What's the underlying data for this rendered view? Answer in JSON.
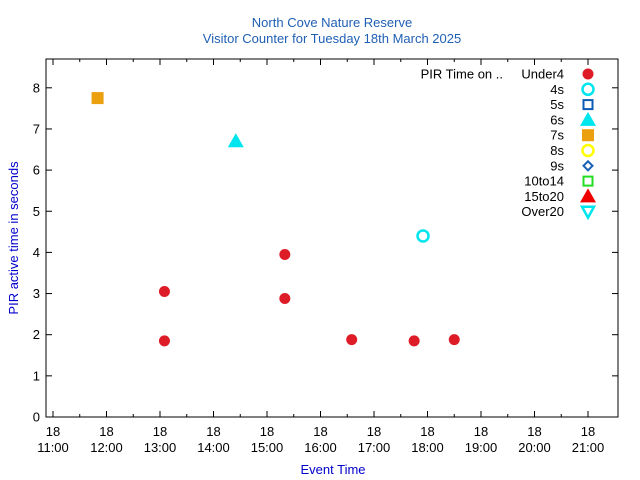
{
  "chart_data": {
    "type": "scatter",
    "title": "North Cove Nature Reserve",
    "subtitle": "Visitor Counter for Tuesday 18th March 2025",
    "xlabel": "Event Time",
    "ylabel": "PIR active time in seconds",
    "xlim": [
      "18 11:00",
      "18 21:00"
    ],
    "ylim": [
      0,
      8.7
    ],
    "xticks": [
      {
        "x": "18 11:00",
        "day": "18",
        "time": "11:00"
      },
      {
        "x": "18 12:00",
        "day": "18",
        "time": "12:00"
      },
      {
        "x": "18 13:00",
        "day": "18",
        "time": "13:00"
      },
      {
        "x": "18 14:00",
        "day": "18",
        "time": "14:00"
      },
      {
        "x": "18 15:00",
        "day": "18",
        "time": "15:00"
      },
      {
        "x": "18 16:00",
        "day": "18",
        "time": "16:00"
      },
      {
        "x": "18 17:00",
        "day": "18",
        "time": "17:00"
      },
      {
        "x": "18 18:00",
        "day": "18",
        "time": "18:00"
      },
      {
        "x": "18 19:00",
        "day": "18",
        "time": "19:00"
      },
      {
        "x": "18 20:00",
        "day": "18",
        "time": "20:00"
      },
      {
        "x": "18 21:00",
        "day": "18",
        "time": "21:00"
      }
    ],
    "yticks": [
      "0",
      "1",
      "2",
      "3",
      "4",
      "5",
      "6",
      "7",
      "8"
    ],
    "grid": false,
    "legend_position": "top-right",
    "legend_heading": "PIR Time on ..",
    "series": [
      {
        "name": "Under4",
        "marker": "filled-circle",
        "color": "#dd1c27",
        "points": [
          {
            "x": "13:05",
            "y": 3.05
          },
          {
            "x": "13:05",
            "y": 1.85
          },
          {
            "x": "15:20",
            "y": 3.95
          },
          {
            "x": "15:20",
            "y": 2.88
          },
          {
            "x": "16:35",
            "y": 1.88
          },
          {
            "x": "17:45",
            "y": 1.85
          },
          {
            "x": "18:30",
            "y": 1.88
          }
        ]
      },
      {
        "name": "4s",
        "marker": "open-circle",
        "color": "#00e5ee",
        "points": [
          {
            "x": "17:55",
            "y": 4.4
          }
        ]
      },
      {
        "name": "5s",
        "marker": "open-square",
        "color": "#0a5db3",
        "points": []
      },
      {
        "name": "6s",
        "marker": "filled-triangle",
        "color": "#00e5ee",
        "points": [
          {
            "x": "14:25",
            "y": 6.7
          }
        ]
      },
      {
        "name": "7s",
        "marker": "filled-square",
        "color": "#eba010",
        "points": [
          {
            "x": "11:50",
            "y": 7.75
          }
        ]
      },
      {
        "name": "8s",
        "marker": "open-circle",
        "color": "#ffff00",
        "points": []
      },
      {
        "name": "9s",
        "marker": "open-diamond",
        "color": "#1a60b8",
        "points": []
      },
      {
        "name": "10to14",
        "marker": "open-square",
        "color": "#22dd22",
        "points": []
      },
      {
        "name": "15to20",
        "marker": "filled-triangle",
        "color": "#ee0000",
        "points": []
      },
      {
        "name": "Over20",
        "marker": "open-triangle-down",
        "color": "#00e5ee",
        "points": []
      }
    ]
  }
}
